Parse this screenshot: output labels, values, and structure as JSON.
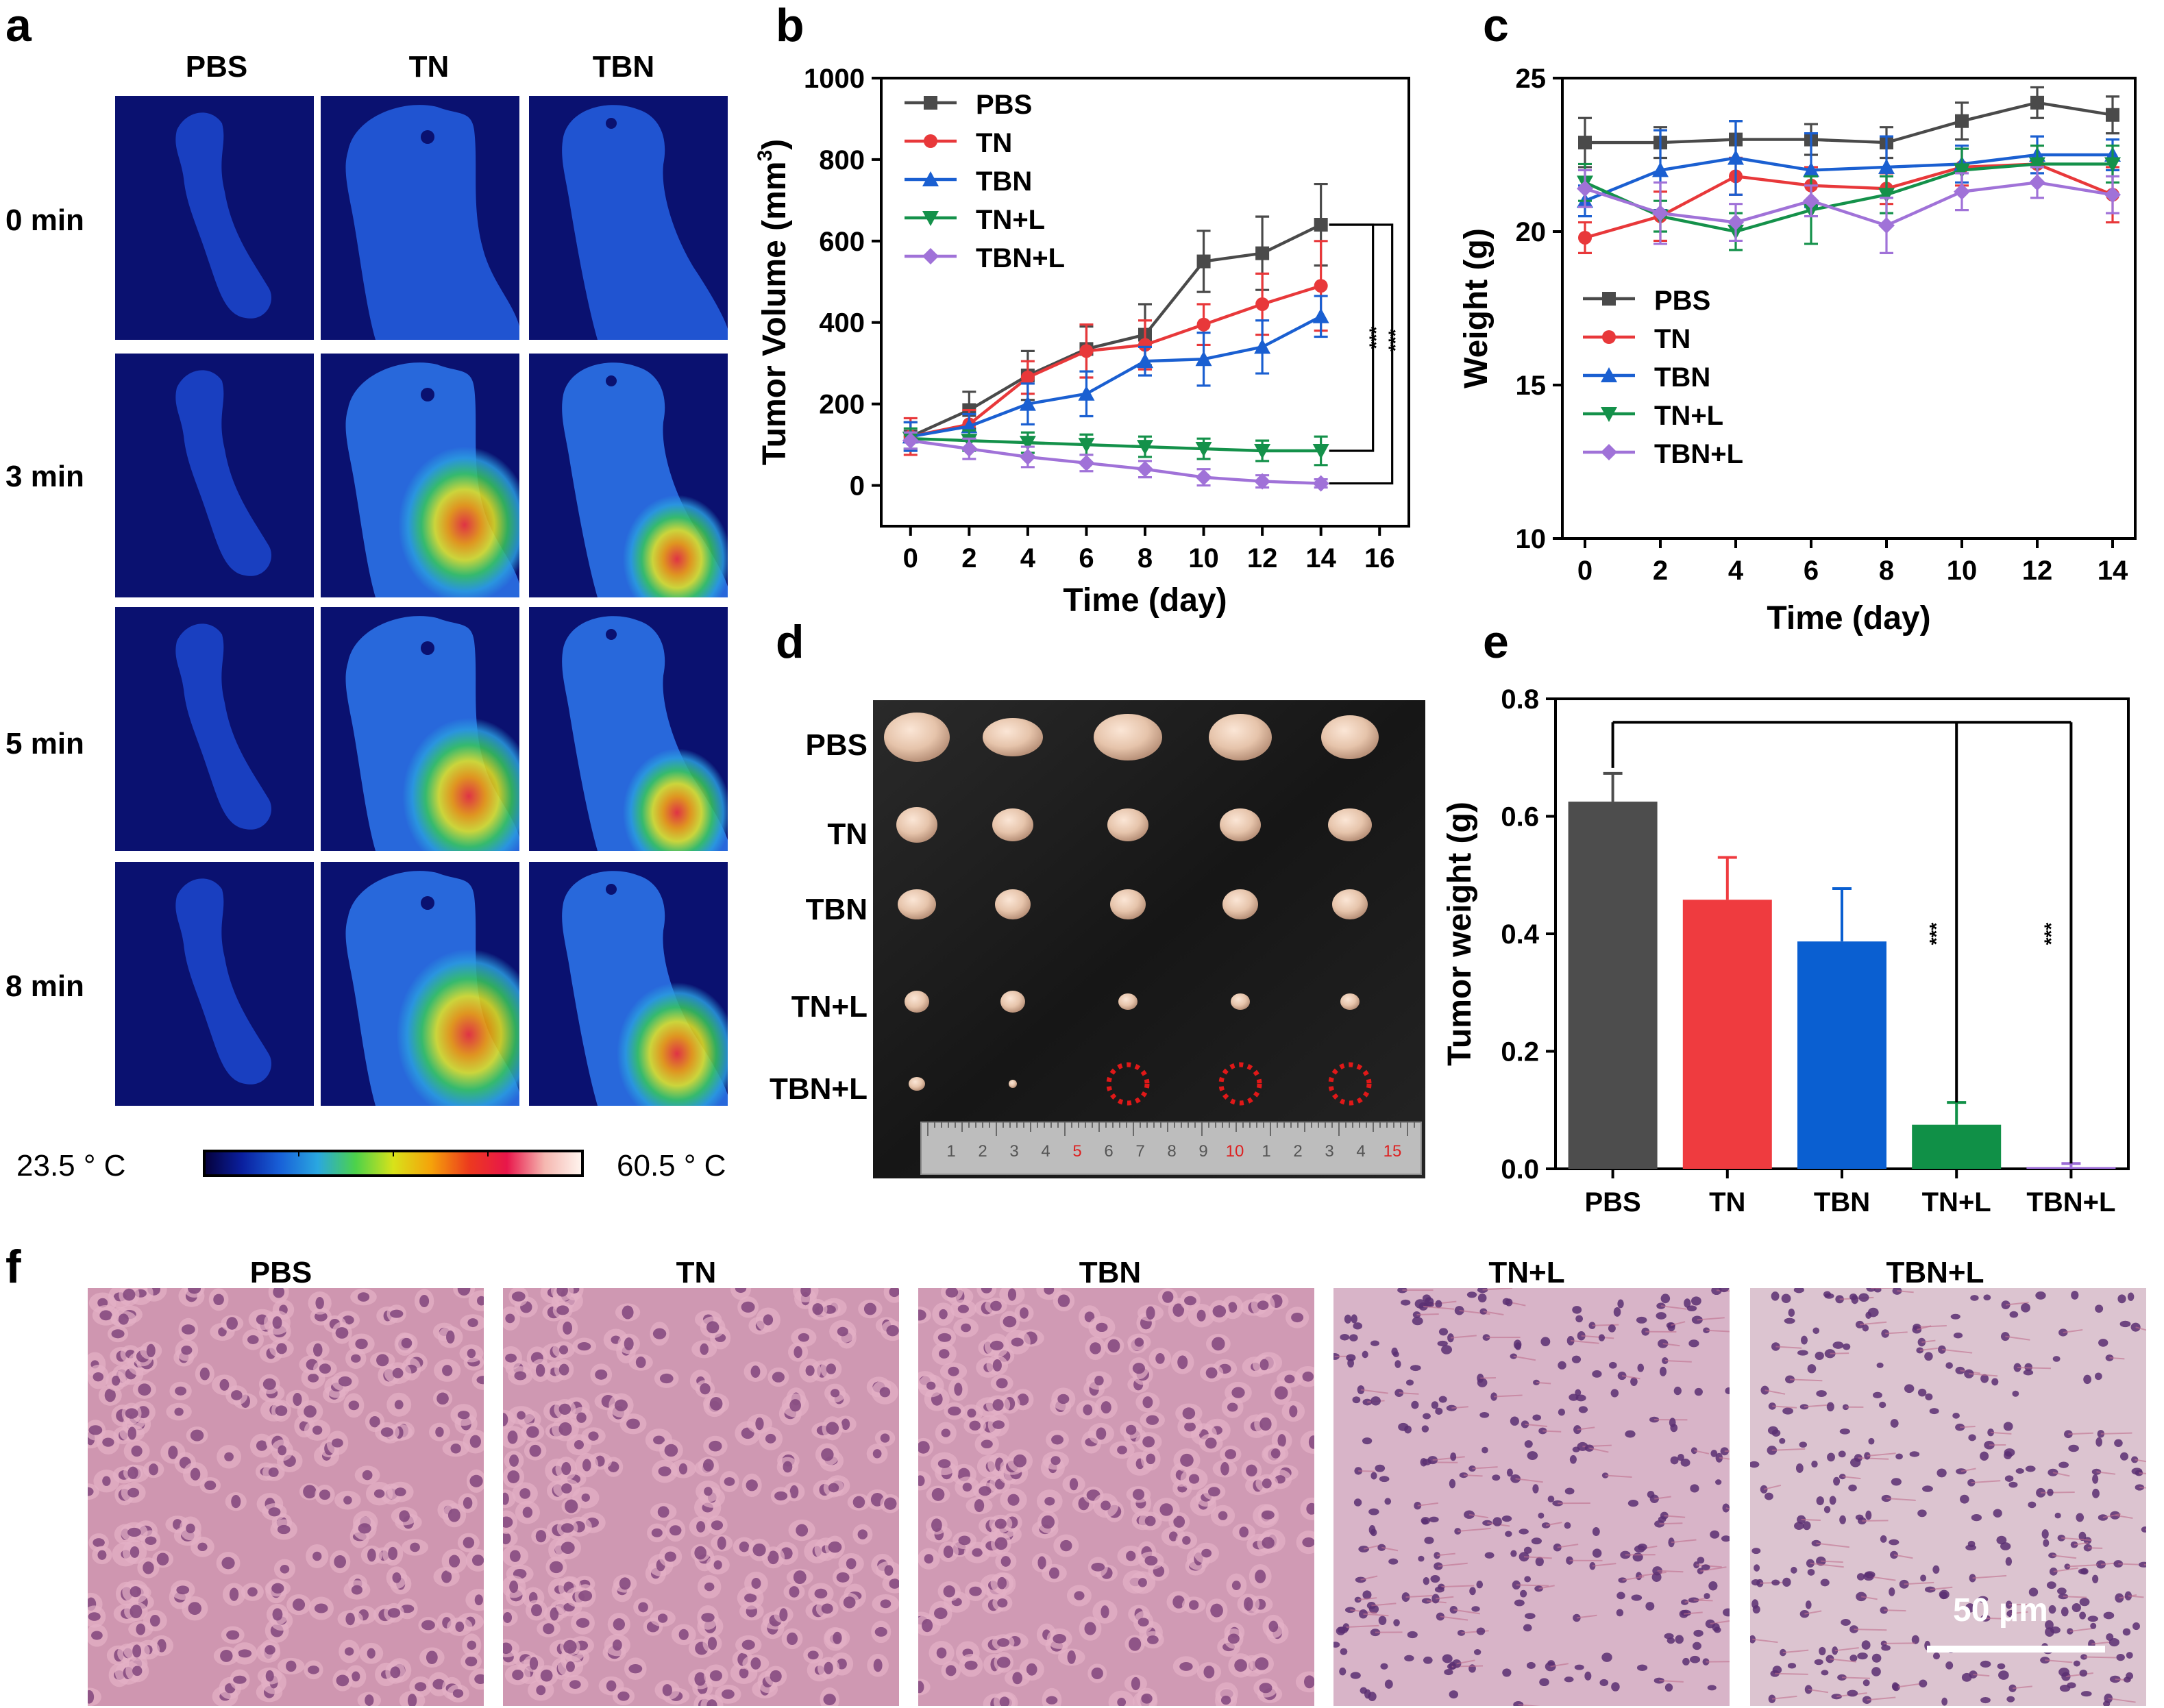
{
  "panel_letters": {
    "a": "a",
    "b": "b",
    "c": "c",
    "d": "d",
    "e": "e",
    "f": "f"
  },
  "panel_a": {
    "columns": [
      "PBS",
      "TN",
      "TBN"
    ],
    "rows": [
      "0 min",
      "3 min",
      "5 min",
      "8 min"
    ],
    "colorbar_min": "23.5 ° C",
    "colorbar_max": "60.5 ° C",
    "colorbar_colors": [
      "#05003a",
      "#0a1f9e",
      "#1860d8",
      "#2aa7e0",
      "#4cd24a",
      "#d8e21a",
      "#f5a20a",
      "#ec3a1e",
      "#e8164a",
      "#f5b7b0",
      "#fff6f0"
    ]
  },
  "panel_d": {
    "rows": [
      "PBS",
      "TN",
      "TBN",
      "TN+L",
      "TBN+L"
    ],
    "ruler_numbers": [
      "1",
      "2",
      "3",
      "4",
      "5",
      "6",
      "7",
      "8",
      "9",
      "10",
      "1",
      "2",
      "3",
      "4",
      "15"
    ]
  },
  "panel_f": {
    "labels": [
      "PBS",
      "TN",
      "TBN",
      "TN+L",
      "TBN+L"
    ],
    "scale_bar": "50 μm"
  },
  "chart_data": [
    {
      "id": "b",
      "type": "line",
      "xlabel": "Time (day)",
      "ylabel": "Tumor Volume (mm³)",
      "ylabel_main": "Tumor Volume (mm",
      "ylabel_sup": "3",
      "ylabel_close": ")",
      "xlim": [
        -1,
        17
      ],
      "ylim": [
        -100,
        1000
      ],
      "xticks": [
        0,
        2,
        4,
        6,
        8,
        10,
        12,
        14,
        16
      ],
      "yticks": [
        0,
        200,
        400,
        600,
        800,
        1000
      ],
      "x": [
        0,
        2,
        4,
        6,
        8,
        10,
        12,
        14
      ],
      "legend_position": "top-left",
      "significance": [
        {
          "label": "***",
          "from_series": "PBS",
          "to_series": "TN+L"
        },
        {
          "label": "***",
          "from_series": "PBS",
          "to_series": "TBN+L"
        }
      ],
      "series": [
        {
          "name": "PBS",
          "color": "#4a4a4a",
          "marker": "square",
          "values": [
            120,
            185,
            270,
            335,
            370,
            550,
            570,
            640
          ],
          "errors": [
            35,
            45,
            60,
            55,
            75,
            75,
            90,
            100
          ]
        },
        {
          "name": "TN",
          "color": "#e8383a",
          "marker": "circle",
          "values": [
            120,
            150,
            265,
            330,
            345,
            395,
            445,
            490
          ],
          "errors": [
            45,
            35,
            40,
            65,
            60,
            50,
            75,
            110
          ]
        },
        {
          "name": "TBN",
          "color": "#1a5fd1",
          "marker": "triangle-up",
          "values": [
            120,
            145,
            200,
            225,
            305,
            310,
            340,
            415
          ],
          "errors": [
            35,
            30,
            50,
            55,
            35,
            65,
            65,
            50
          ]
        },
        {
          "name": "TN+L",
          "color": "#14914a",
          "marker": "triangle-down",
          "values": [
            115,
            110,
            105,
            100,
            95,
            90,
            85,
            85
          ],
          "errors": [
            25,
            25,
            25,
            25,
            25,
            25,
            25,
            35
          ]
        },
        {
          "name": "TBN+L",
          "color": "#a072d8",
          "marker": "diamond",
          "values": [
            110,
            90,
            70,
            55,
            40,
            20,
            10,
            5
          ],
          "errors": [
            20,
            25,
            25,
            20,
            20,
            20,
            15,
            10
          ]
        }
      ]
    },
    {
      "id": "c",
      "type": "line",
      "xlabel": "Time (day)",
      "ylabel": "Weight (g)",
      "xlim": [
        -0.6,
        14.6
      ],
      "ylim": [
        10,
        25
      ],
      "xticks": [
        0,
        2,
        4,
        6,
        8,
        10,
        12,
        14
      ],
      "yticks": [
        10,
        15,
        20,
        25
      ],
      "x": [
        0,
        2,
        4,
        6,
        8,
        10,
        12,
        14
      ],
      "legend_position": "center-left",
      "series": [
        {
          "name": "PBS",
          "color": "#4a4a4a",
          "marker": "square",
          "values": [
            22.9,
            22.9,
            23.0,
            23.0,
            22.9,
            23.6,
            24.2,
            23.8
          ],
          "errors": [
            0.8,
            0.5,
            0.6,
            0.5,
            0.5,
            0.6,
            0.5,
            0.6
          ]
        },
        {
          "name": "TN",
          "color": "#e8383a",
          "marker": "circle",
          "values": [
            19.8,
            20.5,
            21.8,
            21.5,
            21.4,
            22.1,
            22.2,
            21.2
          ],
          "errors": [
            0.5,
            0.8,
            0.6,
            0.6,
            0.5,
            0.6,
            0.6,
            0.9
          ]
        },
        {
          "name": "TBN",
          "color": "#1a5fd1",
          "marker": "triangle-up",
          "values": [
            21.0,
            22.0,
            22.4,
            22.0,
            22.1,
            22.2,
            22.5,
            22.5
          ],
          "errors": [
            0.5,
            1.3,
            1.2,
            1.2,
            1.0,
            0.6,
            0.6,
            0.5
          ]
        },
        {
          "name": "TN+L",
          "color": "#14914a",
          "marker": "triangle-down",
          "values": [
            21.6,
            20.5,
            20.0,
            20.7,
            21.2,
            22.0,
            22.2,
            22.2
          ],
          "errors": [
            0.6,
            0.5,
            0.6,
            1.1,
            0.6,
            0.7,
            0.6,
            0.6
          ]
        },
        {
          "name": "TBN+L",
          "color": "#a072d8",
          "marker": "diamond",
          "values": [
            21.4,
            20.6,
            20.3,
            21.0,
            20.2,
            21.3,
            21.6,
            21.2
          ],
          "errors": [
            0.6,
            1.0,
            0.6,
            0.5,
            0.9,
            0.6,
            0.5,
            0.6
          ]
        }
      ]
    },
    {
      "id": "e",
      "type": "bar",
      "xlabel": "",
      "ylabel": "Tumor weight (g)",
      "categories": [
        "PBS",
        "TN",
        "TBN",
        "TN+L",
        "TBN+L"
      ],
      "values": [
        0.625,
        0.458,
        0.387,
        0.075,
        0.003
      ],
      "errors": [
        0.048,
        0.072,
        0.09,
        0.038,
        0.006
      ],
      "colors": [
        "#4d4d4d",
        "#ef3b3f",
        "#0a5fd1",
        "#109047",
        "#9b6cd6"
      ],
      "ylim": [
        0,
        0.8
      ],
      "yticks": [
        0.0,
        0.2,
        0.4,
        0.6,
        0.8
      ],
      "significance": [
        {
          "label": "***",
          "from": "PBS",
          "to": "TN+L"
        },
        {
          "label": "***",
          "from": "PBS",
          "to": "TBN+L"
        }
      ]
    }
  ]
}
